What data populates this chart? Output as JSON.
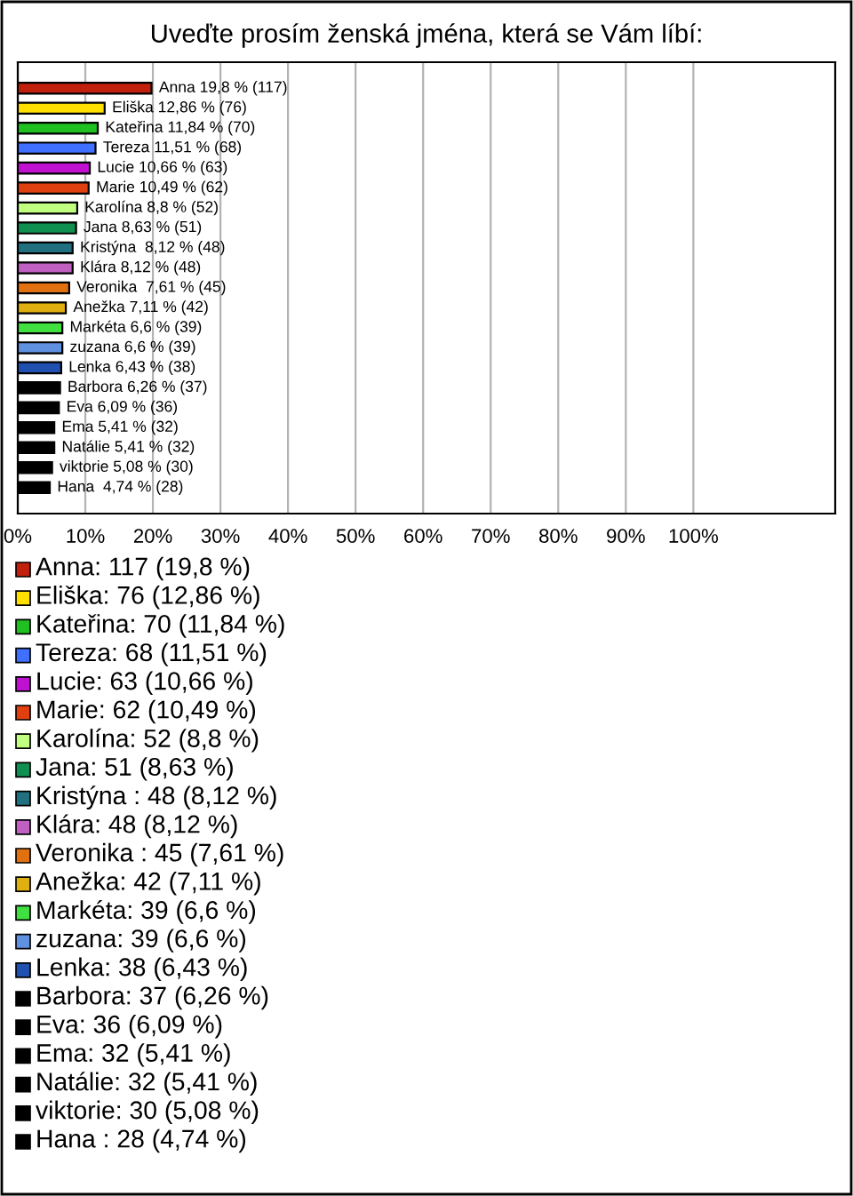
{
  "chart_data": {
    "type": "bar",
    "orientation": "horizontal",
    "title": "Uveďte prosím ženská jména, která se Vám líbí:",
    "categories": [
      null,
      null,
      null,
      null,
      null,
      null,
      null,
      null,
      null,
      null,
      null,
      null,
      null,
      null,
      null,
      null,
      null,
      null,
      null,
      null,
      null
    ],
    "values": [
      19.8,
      12.86,
      11.84,
      11.51,
      10.66,
      10.49,
      8.8,
      8.63,
      8.12,
      8.12,
      7.61,
      7.11,
      6.6,
      6.6,
      6.43,
      6.26,
      6.09,
      5.41,
      5.41,
      5.08,
      4.74
    ],
    "value_labels": [
      "Anna 19,8 % (117)",
      "Eliška 12,86 % (76)",
      "Kateřina 11,84 % (70)",
      "Tereza 11,51 % (68)",
      "Lucie 10,66 % (63)",
      "Marie 10,49 % (62)",
      "Karolína 8,8 % (52)",
      "Jana 8,63 % (51)",
      "Kristýna  8,12 % (48)",
      "Klára 8,12 % (48)",
      "Veronika  7,61 % (45)",
      "Anežka 7,11 % (42)",
      "Markéta 6,6 % (39)",
      "zuzana 6,6 % (39)",
      "Lenka 6,43 % (38)",
      "Barbora 6,26 % (37)",
      "Eva 6,09 % (36)",
      "Ema 5,41 % (32)",
      "Natálie 5,41 % (32)",
      "viktorie 5,08 % (30)",
      "Hana  4,74 % (28)"
    ],
    "colors": [
      "#c0200c",
      "#ffe000",
      "#20c020",
      "#4070ff",
      "#c010d0",
      "#e04010",
      "#c0ff80",
      "#109050",
      "#207080",
      "#c060c0",
      "#e07010",
      "#e0b010",
      "#40e040",
      "#6090e0",
      "#2050b0",
      "#000000",
      "#000000",
      "#000000",
      "#000000",
      "#000000",
      "#000000"
    ],
    "xlim": [
      0,
      121
    ],
    "xticks": [
      {
        "value": 0,
        "label": "0%"
      },
      {
        "value": 10,
        "label": "10%"
      },
      {
        "value": 20,
        "label": "20%"
      },
      {
        "value": 30,
        "label": "30%"
      },
      {
        "value": 40,
        "label": "40%"
      },
      {
        "value": 50,
        "label": "50%"
      },
      {
        "value": 60,
        "label": "60%"
      },
      {
        "value": 70,
        "label": "70%"
      },
      {
        "value": 80,
        "label": "80%"
      },
      {
        "value": 90,
        "label": "90%"
      },
      {
        "value": 100,
        "label": "100%"
      }
    ],
    "tick_labels": "x",
    "grid": "x",
    "annotations": [
      "Anna: 117 (19,8 %)",
      "Eliška: 76 (12,86 %)",
      "Kateřina: 70 (11,84 %)",
      "Tereza: 68 (11,51 %)",
      "Lucie: 63 (10,66 %)",
      "Marie: 62 (10,49 %)",
      "Karolína: 52 (8,8 %)",
      "Jana: 51 (8,63 %)",
      "Kristýna : 48 (8,12 %)",
      "Klára: 48 (8,12 %)",
      "Veronika : 45 (7,61 %)",
      "Anežka: 42 (7,11 %)",
      "Markéta: 39 (6,6 %)",
      "zuzana: 39 (6,6 %)",
      "Lenka: 38 (6,43 %)",
      "Barbora: 37 (6,26 %)",
      "Eva: 36 (6,09 %)",
      "Ema: 32 (5,41 %)",
      "Natálie: 32 (5,41 %)",
      "viktorie: 30 (5,08 %)",
      "Hana : 28 (4,74 %)"
    ]
  }
}
